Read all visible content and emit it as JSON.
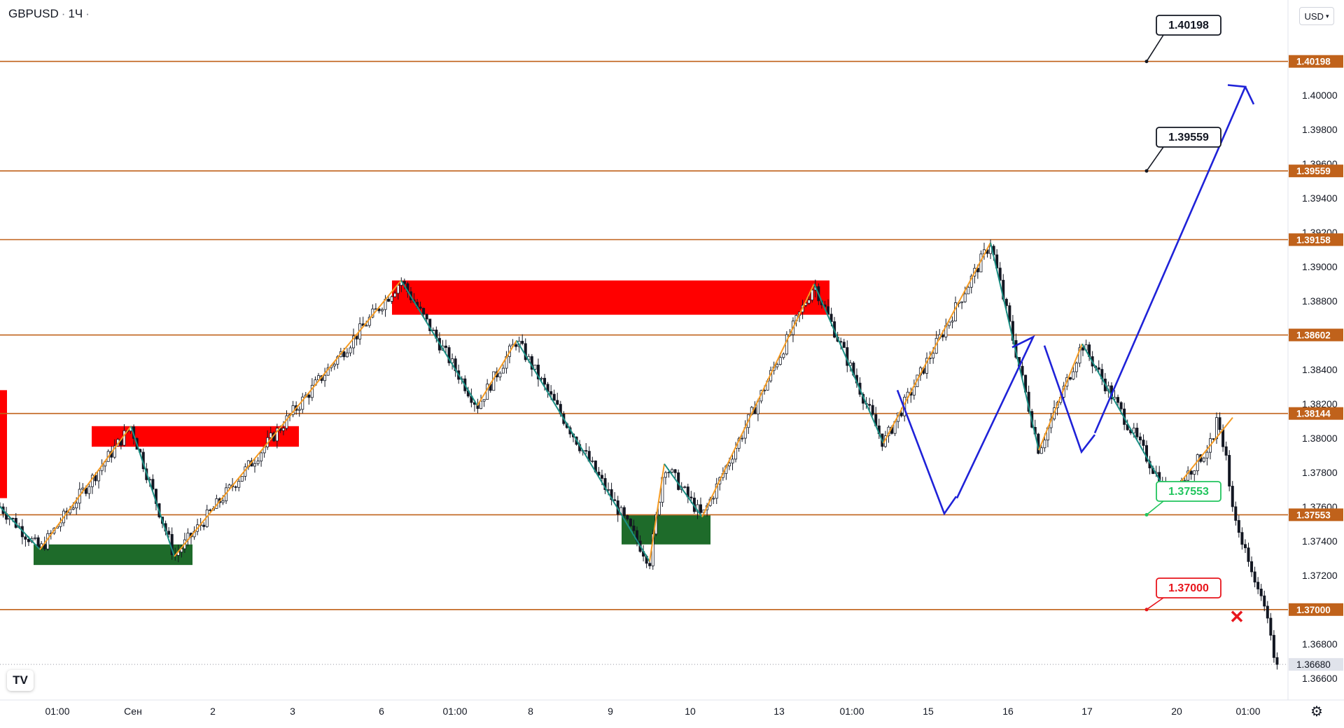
{
  "header": {
    "symbol": "GBPUSD",
    "interval": "1Ч"
  },
  "currency_selector": "USD",
  "logo_text": "TV",
  "settings_icon": "gear-icon",
  "chart_data": {
    "type": "candlestick",
    "symbol": "GBPUSD",
    "interval": "1Ч",
    "ylim": [
      1.3655,
      1.4045
    ],
    "x_tick_labels": [
      "01:00",
      "Сен",
      "2",
      "3",
      "6",
      "01:00",
      "8",
      "9",
      "10",
      "13",
      "01:00",
      "15",
      "16",
      "17",
      "20",
      "01:00"
    ],
    "y_tick_labels": [
      "1.40000",
      "1.39800",
      "1.39600",
      "1.39400",
      "1.39200",
      "1.39000",
      "1.38800",
      "1.38400",
      "1.38200",
      "1.38000",
      "1.37800",
      "1.37600",
      "1.37400",
      "1.37200",
      "1.36800",
      "1.36600"
    ],
    "y_tick_values": [
      1.4,
      1.398,
      1.396,
      1.394,
      1.392,
      1.39,
      1.388,
      1.384,
      1.382,
      1.38,
      1.378,
      1.376,
      1.374,
      1.372,
      1.368,
      1.366
    ],
    "levels": [
      {
        "value": 1.40198,
        "label": "1.40198",
        "callout": "1.40198",
        "callout_color": "#131722"
      },
      {
        "value": 1.39559,
        "label": "1.39559",
        "callout": "1.39559",
        "callout_color": "#131722"
      },
      {
        "value": 1.39158,
        "label": "1.39158"
      },
      {
        "value": 1.38602,
        "label": "1.38602"
      },
      {
        "value": 1.38144,
        "label": "1.38144"
      },
      {
        "value": 1.37553,
        "label": "1.37553",
        "callout": "1.37553",
        "callout_color": "#22c55e"
      },
      {
        "value": 1.37,
        "label": "1.37000",
        "callout": "1.37000",
        "callout_color": "#e8161d"
      }
    ],
    "last_price": {
      "value": 1.3668,
      "label": "1.36680"
    },
    "level_color": "#c0621b",
    "colors": {
      "supply": "#ff0000",
      "demand": "#1e6b2a",
      "zigzag_orange": "#f59b23",
      "zigzag_teal": "#1a8f84",
      "arrow_blue": "#1f22d8",
      "candle": "#131722"
    },
    "supply_zones": [
      {
        "t0": -5,
        "t1": 10,
        "top": 1.3828,
        "bottom": 1.3765
      },
      {
        "t0": 131,
        "t1": 427,
        "top": 1.3807,
        "bottom": 1.3795
      },
      {
        "t0": 560,
        "t1": 1185,
        "top": 1.3892,
        "bottom": 1.3872
      }
    ],
    "demand_zones": [
      {
        "t0": 48,
        "t1": 275,
        "top": 1.3738,
        "bottom": 1.3726
      },
      {
        "t0": 888,
        "t1": 1015,
        "top": 1.3755,
        "bottom": 1.3738
      }
    ],
    "zigzag": [
      {
        "t": 0,
        "p": 1.376,
        "c": "teal"
      },
      {
        "t": 57,
        "p": 1.3735,
        "c": "orange"
      },
      {
        "t": 187,
        "p": 1.3807,
        "c": "teal"
      },
      {
        "t": 249,
        "p": 1.3731,
        "c": "orange"
      },
      {
        "t": 573,
        "p": 1.3892,
        "c": "teal"
      },
      {
        "t": 682,
        "p": 1.3819,
        "c": "orange"
      },
      {
        "t": 738,
        "p": 1.3857,
        "c": "teal"
      },
      {
        "t": 928,
        "p": 1.3728,
        "c": "orange"
      },
      {
        "t": 949,
        "p": 1.3785,
        "c": "teal"
      },
      {
        "t": 1003,
        "p": 1.3754,
        "c": "orange"
      },
      {
        "t": 1163,
        "p": 1.389,
        "c": "teal"
      },
      {
        "t": 1262,
        "p": 1.3797,
        "c": "orange"
      },
      {
        "t": 1415,
        "p": 1.3914,
        "c": "teal"
      },
      {
        "t": 1484,
        "p": 1.3793,
        "c": "orange"
      },
      {
        "t": 1546,
        "p": 1.3855,
        "c": "teal"
      },
      {
        "t": 1670,
        "p": 1.3766,
        "c": "orange"
      },
      {
        "t": 1761,
        "p": 1.3812,
        "c": "end"
      }
    ],
    "forecast_paths": [
      [
        {
          "t": 1282,
          "p": 1.3828
        },
        {
          "t": 1349,
          "p": 1.3756
        },
        {
          "t": 1366,
          "p": 1.3766
        }
      ],
      [
        {
          "t": 1367,
          "p": 1.3765
        },
        {
          "t": 1476,
          "p": 1.3859
        },
        {
          "t": 1446,
          "p": 1.3853
        }
      ],
      [
        {
          "t": 1492,
          "p": 1.3854
        },
        {
          "t": 1545,
          "p": 1.3792
        },
        {
          "t": 1564,
          "p": 1.3802
        }
      ],
      [
        {
          "t": 1564,
          "p": 1.3803
        },
        {
          "t": 1779,
          "p": 1.4005
        },
        {
          "t": 1754,
          "p": 1.4006
        }
      ]
    ],
    "cross_marker": {
      "t": 1767,
      "p": 1.3696
    },
    "candles_count": 392
  }
}
